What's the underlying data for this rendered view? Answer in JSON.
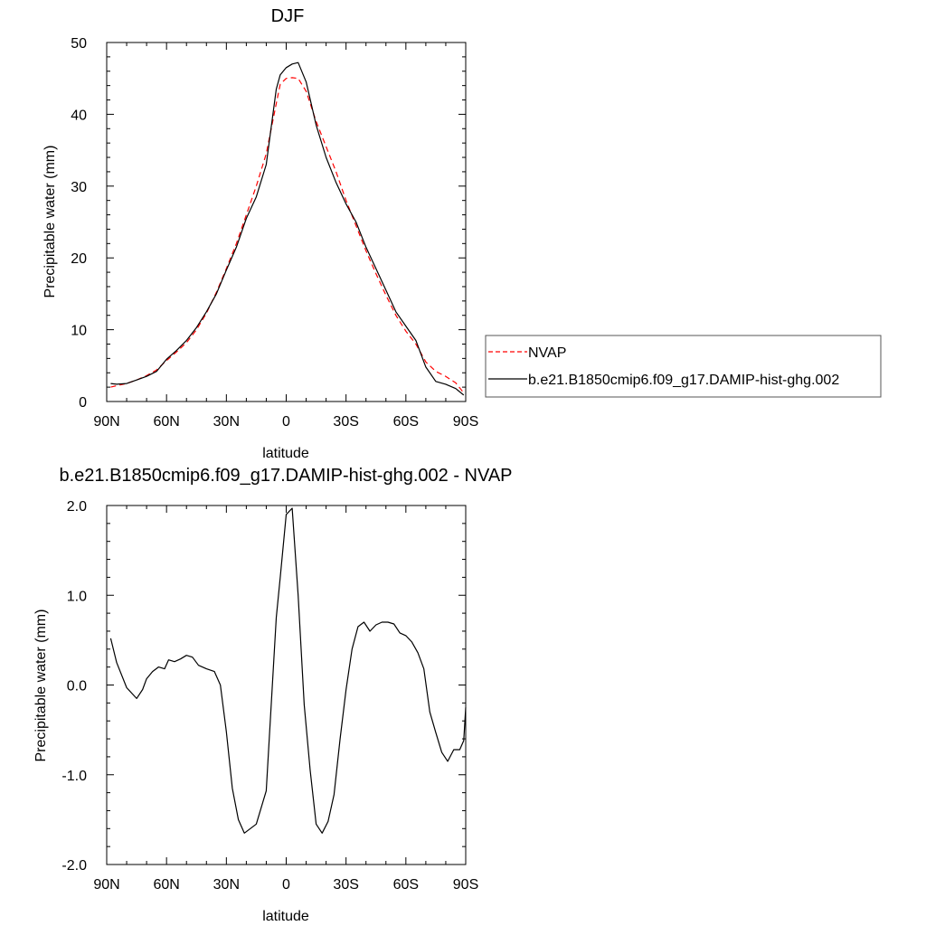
{
  "chart_data": [
    {
      "type": "line",
      "title": "DJF",
      "xlabel": "latitude",
      "ylabel": "Precipitable water (mm)",
      "xlim": [
        90,
        -90
      ],
      "ylim": [
        0,
        50
      ],
      "x_ticks": [
        90,
        60,
        30,
        0,
        -30,
        -60,
        -90
      ],
      "x_tick_labels": [
        "90N",
        "60N",
        "30N",
        "0",
        "30S",
        "60S",
        "90S"
      ],
      "y_ticks": [
        0,
        10,
        20,
        30,
        40,
        50
      ],
      "y_tick_labels": [
        "0",
        "10",
        "20",
        "30",
        "40",
        "50"
      ],
      "grid": false,
      "legend_position": "right",
      "series": [
        {
          "name": "NVAP",
          "color": "#ff0000",
          "dash": "dashed",
          "points": [
            [
              88,
              2.0
            ],
            [
              85,
              2.2
            ],
            [
              80,
              2.5
            ],
            [
              75,
              3.0
            ],
            [
              70,
              3.6
            ],
            [
              65,
              4.4
            ],
            [
              60,
              5.7
            ],
            [
              55,
              6.9
            ],
            [
              50,
              8.2
            ],
            [
              45,
              10.0
            ],
            [
              40,
              12.3
            ],
            [
              35,
              15.2
            ],
            [
              30,
              18.5
            ],
            [
              25,
              22.0
            ],
            [
              20,
              26.0
            ],
            [
              15,
              30.0
            ],
            [
              10,
              34.5
            ],
            [
              5,
              41.5
            ],
            [
              3,
              44.2
            ],
            [
              0,
              45.0
            ],
            [
              -3,
              45.1
            ],
            [
              -6,
              45.0
            ],
            [
              -10,
              43.2
            ],
            [
              -15,
              39.0
            ],
            [
              -20,
              35.5
            ],
            [
              -25,
              32.0
            ],
            [
              -30,
              28.0
            ],
            [
              -35,
              24.5
            ],
            [
              -40,
              21.0
            ],
            [
              -45,
              17.8
            ],
            [
              -50,
              14.8
            ],
            [
              -55,
              12.0
            ],
            [
              -60,
              9.8
            ],
            [
              -65,
              8.0
            ],
            [
              -70,
              5.5
            ],
            [
              -75,
              4.2
            ],
            [
              -80,
              3.5
            ],
            [
              -85,
              2.6
            ],
            [
              -89,
              1.2
            ]
          ]
        },
        {
          "name": "b.e21.B1850cmip6.f09_g17.DAMIP-hist-ghg.002",
          "color": "#000000",
          "dash": "solid",
          "points": [
            [
              88,
              2.5
            ],
            [
              85,
              2.4
            ],
            [
              80,
              2.5
            ],
            [
              75,
              3.0
            ],
            [
              70,
              3.5
            ],
            [
              65,
              4.2
            ],
            [
              60,
              5.9
            ],
            [
              55,
              7.1
            ],
            [
              50,
              8.5
            ],
            [
              45,
              10.3
            ],
            [
              40,
              12.5
            ],
            [
              35,
              15.0
            ],
            [
              30,
              18.3
            ],
            [
              25,
              21.5
            ],
            [
              20,
              25.5
            ],
            [
              15,
              28.5
            ],
            [
              10,
              33.0
            ],
            [
              5,
              43.5
            ],
            [
              3,
              45.5
            ],
            [
              0,
              46.5
            ],
            [
              -3,
              47.0
            ],
            [
              -6,
              47.2
            ],
            [
              -10,
              44.5
            ],
            [
              -15,
              38.5
            ],
            [
              -20,
              34.0
            ],
            [
              -25,
              30.5
            ],
            [
              -30,
              27.5
            ],
            [
              -35,
              25.0
            ],
            [
              -40,
              21.5
            ],
            [
              -45,
              18.5
            ],
            [
              -50,
              15.5
            ],
            [
              -55,
              12.5
            ],
            [
              -60,
              10.5
            ],
            [
              -65,
              8.5
            ],
            [
              -70,
              4.8
            ],
            [
              -75,
              2.8
            ],
            [
              -80,
              2.4
            ],
            [
              -85,
              1.8
            ],
            [
              -89,
              0.9
            ]
          ]
        }
      ]
    },
    {
      "type": "line",
      "title": "b.e21.B1850cmip6.f09_g17.DAMIP-hist-ghg.002 - NVAP",
      "xlabel": "latitude",
      "ylabel": "Precipitable water (mm)",
      "xlim": [
        90,
        -90
      ],
      "ylim": [
        -2,
        2
      ],
      "x_ticks": [
        90,
        60,
        30,
        0,
        -30,
        -60,
        -90
      ],
      "x_tick_labels": [
        "90N",
        "60N",
        "30N",
        "0",
        "30S",
        "60S",
        "90S"
      ],
      "y_ticks": [
        -2,
        -1,
        0,
        1,
        2
      ],
      "y_tick_labels": [
        "-2.0",
        "-1.0",
        "0.0",
        "1.0",
        "2.0"
      ],
      "grid": false,
      "series": [
        {
          "color": "#000000",
          "dash": "solid",
          "points": [
            [
              88,
              0.52
            ],
            [
              85,
              0.25
            ],
            [
              80,
              -0.03
            ],
            [
              75,
              -0.15
            ],
            [
              72,
              -0.05
            ],
            [
              70,
              0.07
            ],
            [
              67,
              0.15
            ],
            [
              64,
              0.2
            ],
            [
              61,
              0.18
            ],
            [
              59,
              0.28
            ],
            [
              56,
              0.26
            ],
            [
              53,
              0.29
            ],
            [
              50,
              0.33
            ],
            [
              47,
              0.31
            ],
            [
              44,
              0.22
            ],
            [
              40,
              0.18
            ],
            [
              36,
              0.15
            ],
            [
              33,
              0.0
            ],
            [
              30,
              -0.52
            ],
            [
              27,
              -1.15
            ],
            [
              24,
              -1.5
            ],
            [
              21,
              -1.65
            ],
            [
              18,
              -1.6
            ],
            [
              15,
              -1.55
            ],
            [
              10,
              -1.18
            ],
            [
              5,
              0.75
            ],
            [
              3,
              1.2
            ],
            [
              0,
              1.9
            ],
            [
              -3,
              1.97
            ],
            [
              -6,
              1.0
            ],
            [
              -9,
              -0.22
            ],
            [
              -12,
              -0.95
            ],
            [
              -15,
              -1.55
            ],
            [
              -18,
              -1.65
            ],
            [
              -21,
              -1.52
            ],
            [
              -24,
              -1.22
            ],
            [
              -27,
              -0.6
            ],
            [
              -30,
              -0.05
            ],
            [
              -33,
              0.4
            ],
            [
              -36,
              0.65
            ],
            [
              -39,
              0.7
            ],
            [
              -42,
              0.6
            ],
            [
              -45,
              0.67
            ],
            [
              -48,
              0.7
            ],
            [
              -51,
              0.7
            ],
            [
              -54,
              0.68
            ],
            [
              -57,
              0.58
            ],
            [
              -60,
              0.55
            ],
            [
              -63,
              0.48
            ],
            [
              -66,
              0.36
            ],
            [
              -69,
              0.18
            ],
            [
              -72,
              -0.3
            ],
            [
              -75,
              -0.53
            ],
            [
              -78,
              -0.75
            ],
            [
              -81,
              -0.85
            ],
            [
              -84,
              -0.72
            ],
            [
              -87,
              -0.72
            ],
            [
              -89,
              -0.62
            ],
            [
              -90,
              -0.25
            ]
          ]
        }
      ]
    }
  ]
}
